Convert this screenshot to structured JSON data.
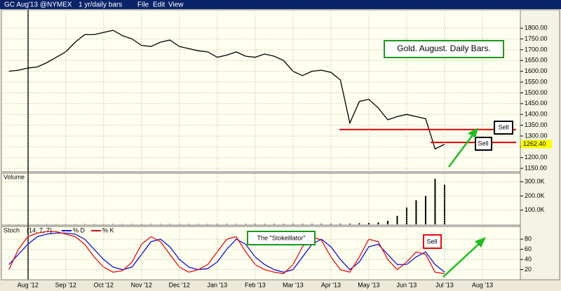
{
  "window": {
    "symbol": "GC Aug'13 @NYMEX",
    "interval": "1 yr/daily bars",
    "menu": [
      "File",
      "Edit",
      "View"
    ]
  },
  "chart_data": [
    {
      "type": "line",
      "title": "Gold. August. Daily Bars.",
      "color": "#000000",
      "x": [
        -0.5,
        -0.25,
        0,
        0.25,
        0.5,
        0.75,
        1,
        1.25,
        1.5,
        1.75,
        2,
        2.25,
        2.5,
        2.75,
        3,
        3.25,
        3.5,
        3.75,
        4,
        4.25,
        4.5,
        4.75,
        5,
        5.25,
        5.5,
        5.75,
        6,
        6.25,
        6.5,
        6.75,
        7,
        7.25,
        7.5,
        7.75,
        8,
        8.25,
        8.5,
        8.75,
        9,
        9.25,
        9.5,
        9.75,
        10,
        10.25,
        10.5,
        10.75,
        11
      ],
      "values": [
        1600,
        1605,
        1615,
        1620,
        1640,
        1665,
        1690,
        1735,
        1770,
        1770,
        1780,
        1790,
        1765,
        1750,
        1720,
        1715,
        1735,
        1745,
        1715,
        1705,
        1695,
        1690,
        1665,
        1675,
        1690,
        1670,
        1665,
        1680,
        1670,
        1650,
        1600,
        1580,
        1600,
        1605,
        1595,
        1560,
        1360,
        1460,
        1470,
        1430,
        1375,
        1390,
        1400,
        1390,
        1380,
        1240,
        1262
      ],
      "ylim": [
        1134,
        1885
      ],
      "yticks": [
        {
          "value": 1150,
          "label": "1150.00"
        },
        {
          "value": 1200,
          "label": "1200.00"
        },
        {
          "value": 1250,
          "label": "1250.00"
        },
        {
          "value": 1300,
          "label": "1300.00"
        },
        {
          "value": 1350,
          "label": "1350.00"
        },
        {
          "value": 1400,
          "label": "1400.00"
        },
        {
          "value": 1450,
          "label": "1450.00"
        },
        {
          "value": 1500,
          "label": "1500.00"
        },
        {
          "value": 1550,
          "label": "1550.00"
        },
        {
          "value": 1600,
          "label": "1600.00"
        },
        {
          "value": 1650,
          "label": "1650.00"
        },
        {
          "value": 1700,
          "label": "1700.00"
        },
        {
          "value": 1750,
          "label": "1750.00"
        },
        {
          "value": 1800,
          "label": "1800.00"
        }
      ],
      "last": {
        "value": 1262.4,
        "label": "1262.40"
      },
      "hlines": [
        1330,
        1270
      ],
      "hline_color": "#e00000",
      "annotations": [
        "Sell",
        "Sell"
      ],
      "grid": true
    },
    {
      "type": "bar",
      "title": "Volume",
      "color": "#000000",
      "x": [
        -0.5,
        -0.25,
        0,
        0.25,
        0.5,
        0.75,
        1,
        1.25,
        1.5,
        1.75,
        2,
        2.25,
        2.5,
        2.75,
        3,
        3.25,
        3.5,
        3.75,
        4,
        4.25,
        4.5,
        4.75,
        5,
        5.25,
        5.5,
        5.75,
        6,
        6.25,
        6.5,
        6.75,
        7,
        7.25,
        7.5,
        7.75,
        8,
        8.25,
        8.5,
        8.75,
        9,
        9.25,
        9.5,
        9.75,
        10,
        10.25,
        10.5,
        10.75,
        11
      ],
      "values": [
        1200,
        1100,
        1300,
        1500,
        1400,
        1600,
        1800,
        1500,
        1700,
        1600,
        1900,
        2000,
        1800,
        1700,
        2100,
        2200,
        2000,
        2300,
        2100,
        2400,
        2500,
        2200,
        2600,
        2800,
        2500,
        2700,
        3000,
        2900,
        3100,
        3300,
        3000,
        3500,
        3800,
        4000,
        4200,
        4500,
        5000,
        8000,
        10000,
        15000,
        25000,
        60000,
        120000,
        170000,
        200000,
        320000,
        280000
      ],
      "ylim": [
        0,
        360000
      ],
      "yticks": [
        {
          "value": 100000,
          "label": "100.0K"
        },
        {
          "value": 200000,
          "label": "200.0K"
        },
        {
          "value": 300000,
          "label": "300.0K"
        }
      ],
      "grid": true
    },
    {
      "type": "line",
      "title": "Stoch",
      "params": "(14, 7, 7)",
      "x": [
        -0.5,
        -0.25,
        0,
        0.25,
        0.5,
        0.75,
        1,
        1.25,
        1.5,
        1.75,
        2,
        2.25,
        2.5,
        2.75,
        3,
        3.25,
        3.5,
        3.75,
        4,
        4.25,
        4.5,
        4.75,
        5,
        5.25,
        5.5,
        5.75,
        6,
        6.25,
        6.5,
        6.75,
        7,
        7.25,
        7.5,
        7.75,
        8,
        8.25,
        8.5,
        8.75,
        9,
        9.25,
        9.5,
        9.75,
        10,
        10.25,
        10.5,
        10.75,
        11
      ],
      "series": [
        {
          "name": "% D",
          "color": "#1010d0",
          "values": [
            30,
            50,
            70,
            85,
            90,
            92,
            92,
            90,
            80,
            60,
            40,
            25,
            20,
            25,
            50,
            75,
            80,
            65,
            40,
            25,
            20,
            22,
            35,
            60,
            80,
            70,
            45,
            30,
            20,
            15,
            20,
            45,
            70,
            80,
            65,
            40,
            20,
            35,
            65,
            70,
            50,
            30,
            30,
            45,
            55,
            30,
            15
          ]
        },
        {
          "name": "% K",
          "color": "#e01010",
          "values": [
            20,
            60,
            85,
            92,
            95,
            95,
            90,
            85,
            70,
            45,
            25,
            15,
            18,
            35,
            70,
            85,
            75,
            50,
            25,
            15,
            20,
            30,
            55,
            80,
            85,
            55,
            30,
            20,
            15,
            12,
            30,
            65,
            85,
            78,
            45,
            20,
            15,
            45,
            80,
            75,
            40,
            20,
            35,
            55,
            50,
            15,
            12
          ]
        }
      ],
      "ylim": [
        0,
        105
      ],
      "yticks": [
        20,
        40,
        60,
        80
      ],
      "xlim": [
        -0.55,
        13
      ],
      "xticks": [
        {
          "value": 0,
          "label": "Aug '12"
        },
        {
          "value": 1,
          "label": "Sep '12"
        },
        {
          "value": 2,
          "label": "Oct '12"
        },
        {
          "value": 3,
          "label": "Nov '12"
        },
        {
          "value": 4,
          "label": "Dec '12"
        },
        {
          "value": 5,
          "label": "Jan '13"
        },
        {
          "value": 6,
          "label": "Feb '13"
        },
        {
          "value": 7,
          "label": "Mar '13"
        },
        {
          "value": 8,
          "label": "Apr '13"
        },
        {
          "value": 9,
          "label": "May '13"
        },
        {
          "value": 10,
          "label": "Jun '13"
        },
        {
          "value": 11,
          "label": "Jul '13"
        },
        {
          "value": 12,
          "label": "Aug '13"
        }
      ],
      "annotations": [
        "The \"Stokeillator\"",
        "Sell"
      ],
      "grid": true
    }
  ]
}
